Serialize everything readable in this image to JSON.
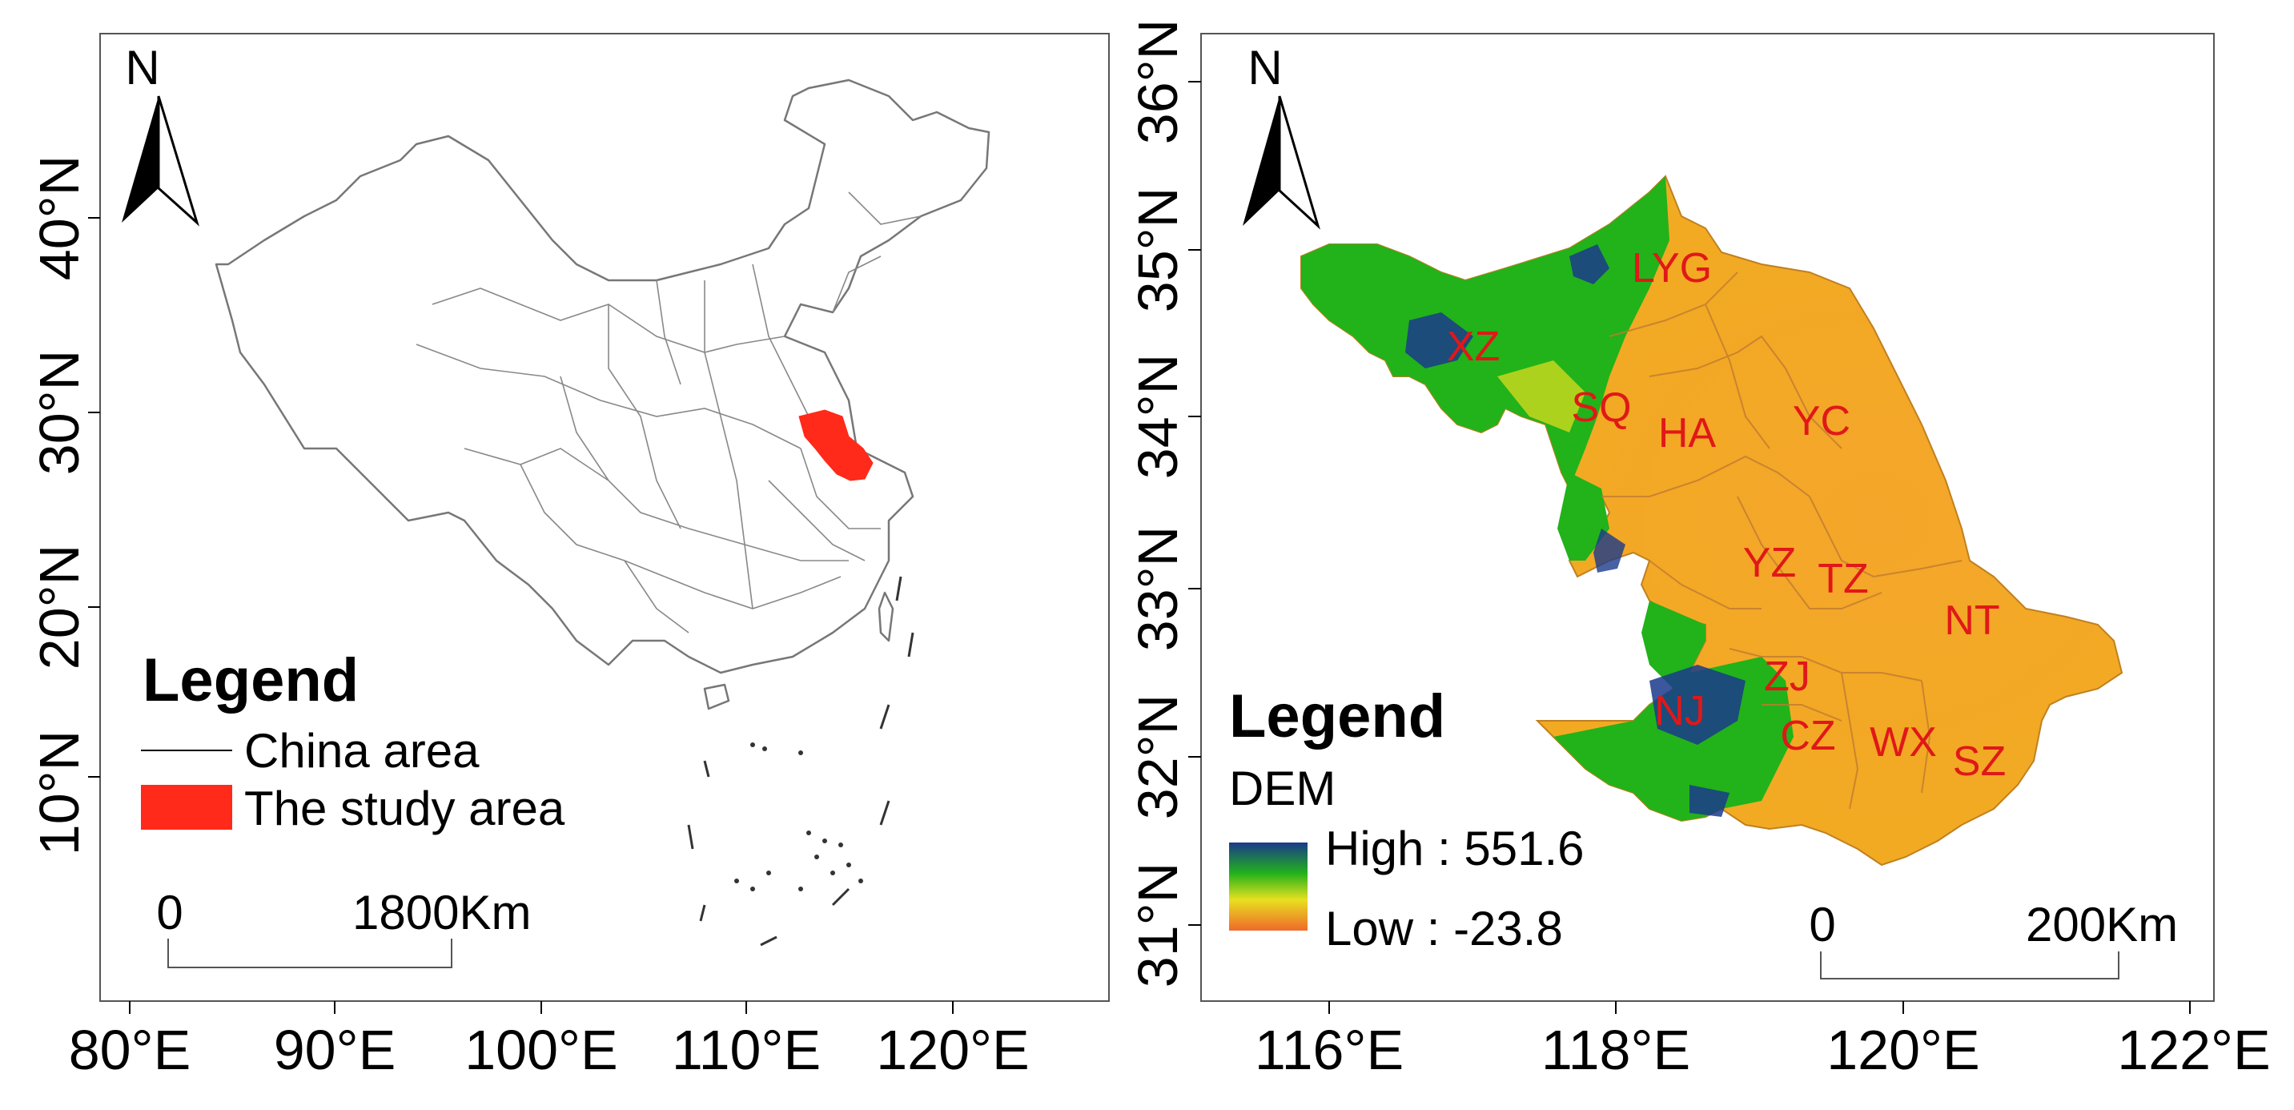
{
  "left_map": {
    "north_label": "N",
    "lat_ticks": [
      "40°N",
      "30°N",
      "20°N",
      "10°N"
    ],
    "lon_ticks": [
      "80°E",
      "90°E",
      "100°E",
      "110°E",
      "120°E"
    ],
    "legend": {
      "title": "Legend",
      "items": [
        "China area",
        "The study area"
      ]
    },
    "scale": {
      "start": "0",
      "end": "1800Km"
    },
    "colors": {
      "study_area": "#ff2a1a",
      "boundary": "#777777"
    }
  },
  "right_map": {
    "north_label": "N",
    "lat_ticks": [
      "36°N",
      "35°N",
      "34°N",
      "33°N",
      "32°N",
      "31°N"
    ],
    "lon_ticks": [
      "116°E",
      "118°E",
      "120°E",
      "122°E"
    ],
    "cities": [
      "LYG",
      "XZ",
      "SQ",
      "HA",
      "YC",
      "YZ",
      "TZ",
      "NT",
      "ZJ",
      "NJ",
      "CZ",
      "WX",
      "SZ"
    ],
    "legend": {
      "title": "Legend",
      "subtitle": "DEM",
      "high": "High : 551.6",
      "low": "Low : -23.8"
    },
    "scale": {
      "start": "0",
      "end": "200Km"
    },
    "colors": {
      "dem_high": "#1a3a8c",
      "dem_mid": "#22b21a",
      "dem_low": "#f0a020",
      "city_label": "#e01818"
    }
  }
}
